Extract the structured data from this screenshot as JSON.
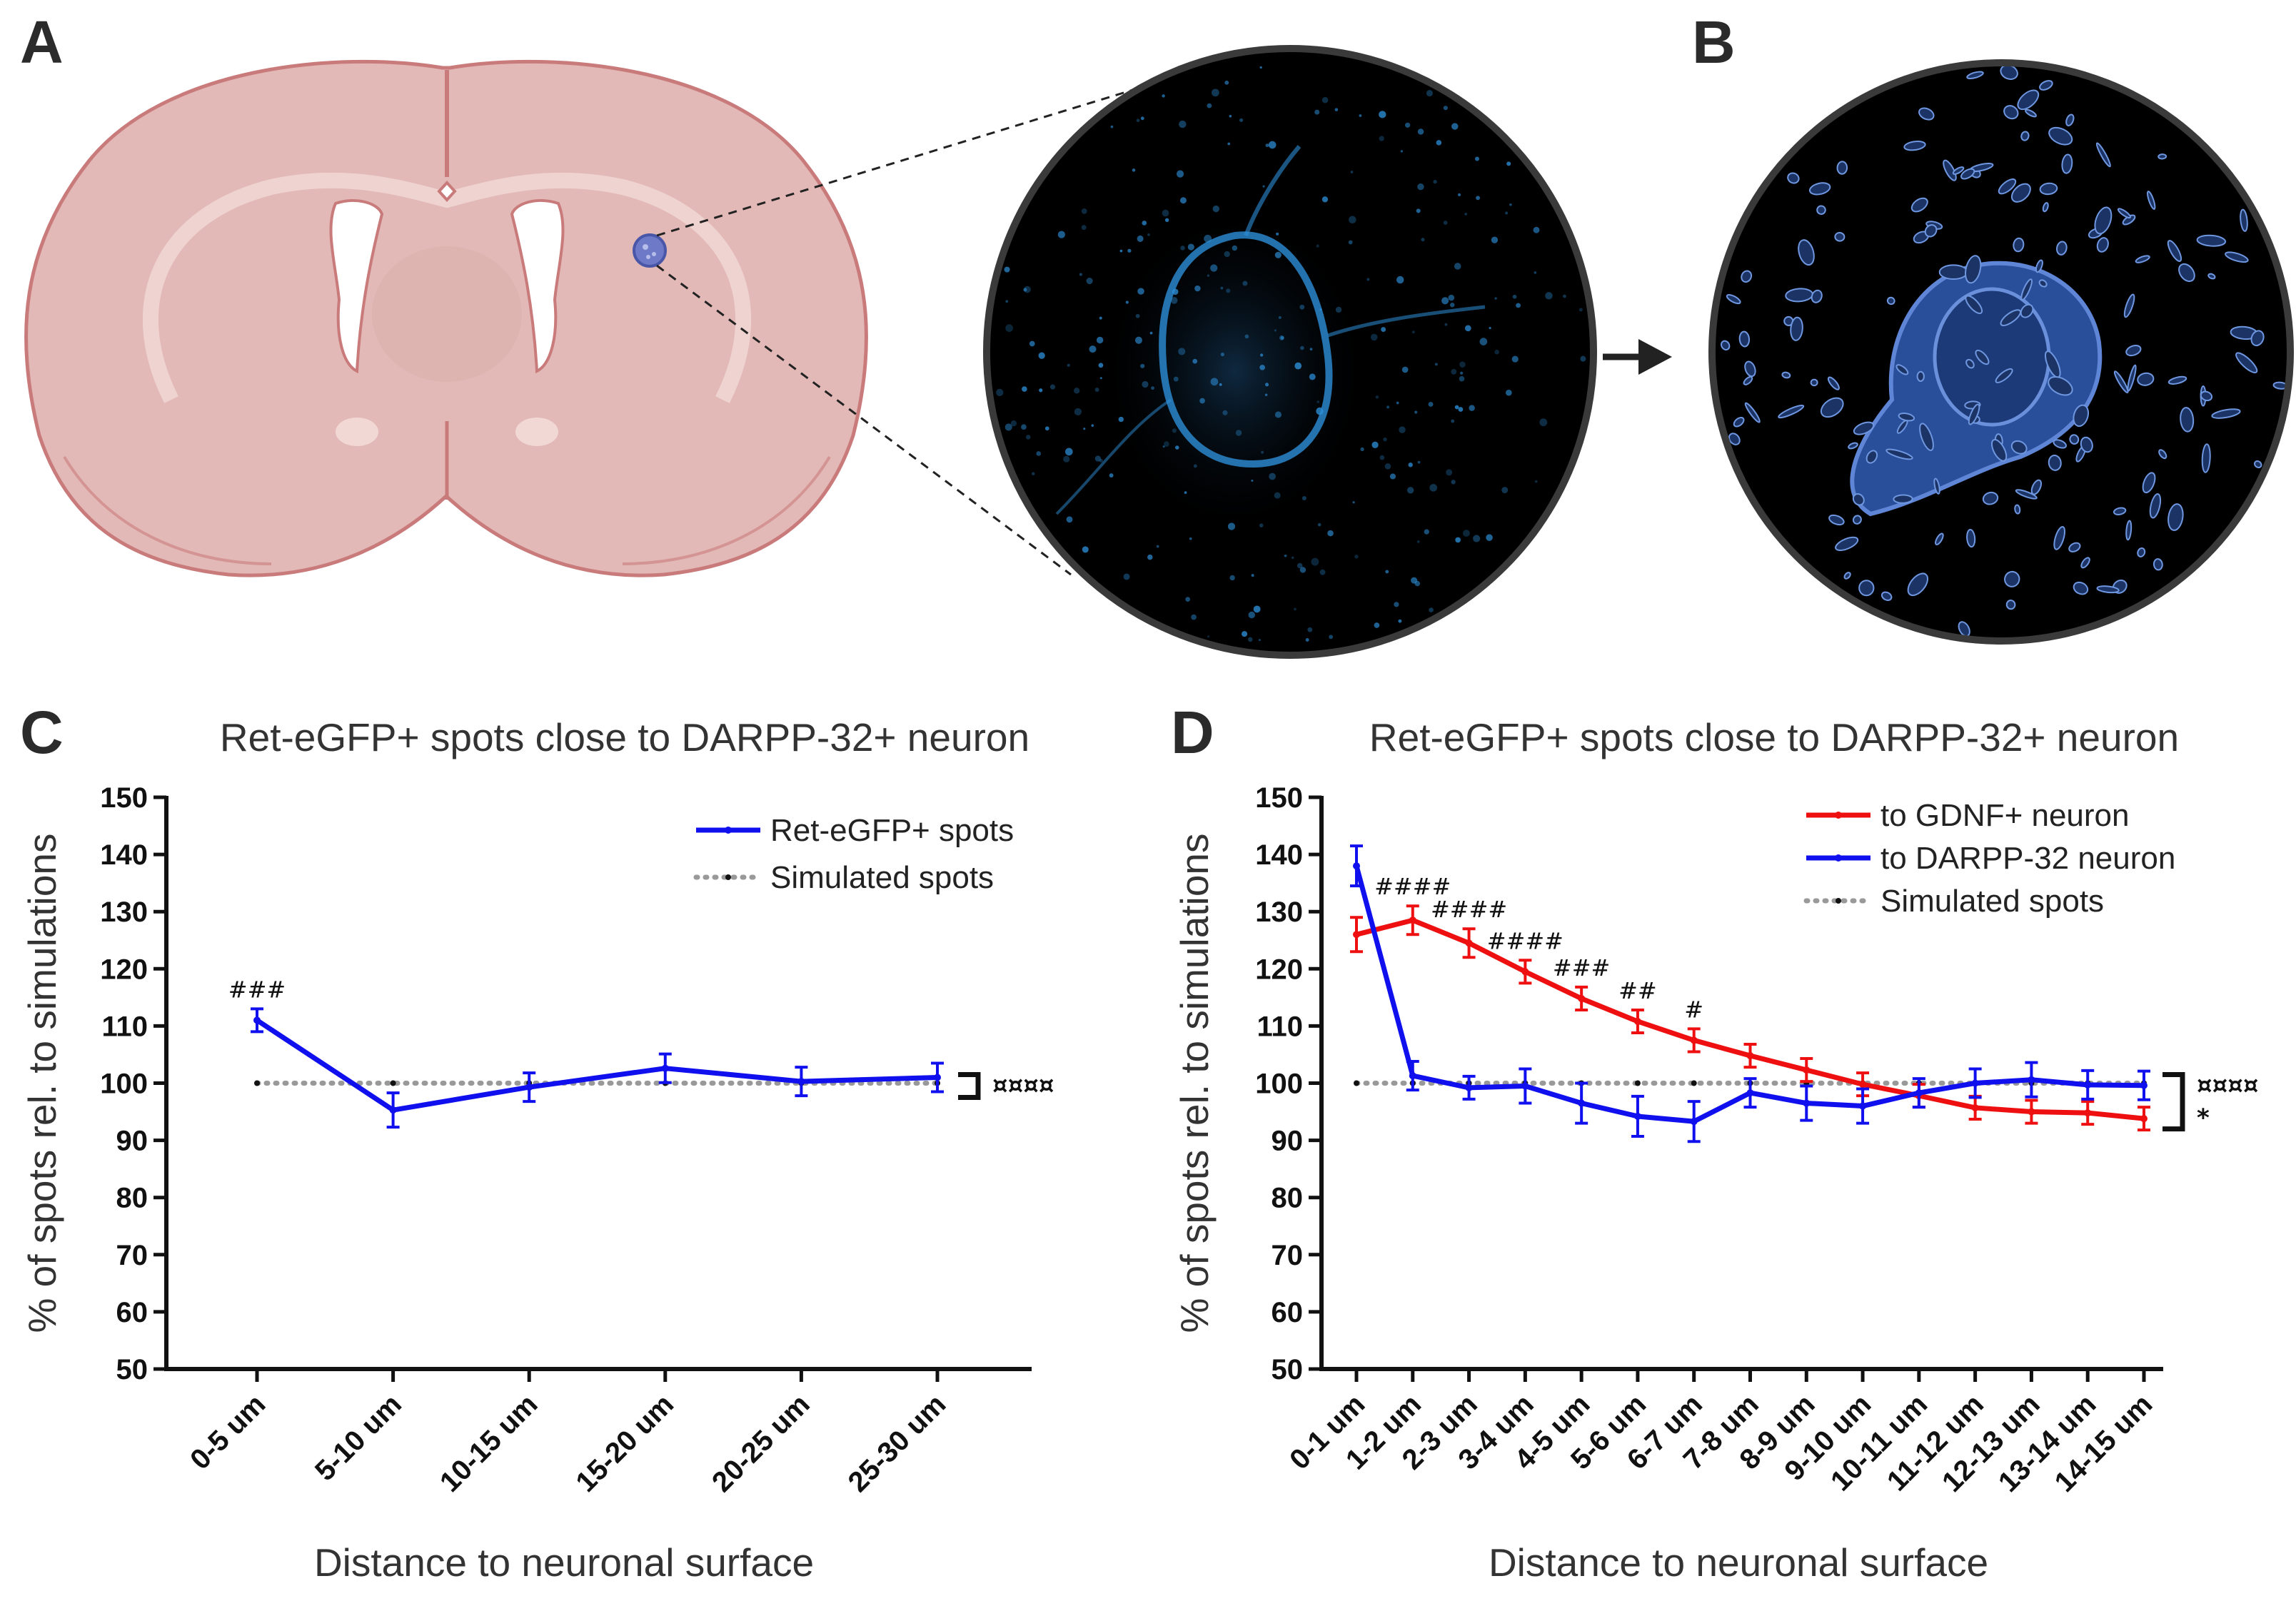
{
  "panels": {
    "a": "A",
    "b": "B",
    "c": "C",
    "d": "D"
  },
  "colors": {
    "brain_fill": "#e2b9b7",
    "brain_stroke": "#c97b7b",
    "brain_inner": "#efd3d0",
    "micrograph_bg": "#000000",
    "signal_blue": "#2d8fd8",
    "surface_blue": "#3f73c9",
    "series_blue": "#1010ee",
    "series_red": "#ee1010",
    "simulated": "#999999"
  },
  "chart_data": [
    {
      "id": "C",
      "type": "line",
      "title": "Ret-eGFP+ spots close to DARPP-32+ neuron",
      "xlabel": "Distance to neuronal surface",
      "ylabel": "% of spots rel. to simulations",
      "ylim": [
        50,
        150
      ],
      "yticks": [
        50,
        60,
        70,
        80,
        90,
        100,
        110,
        120,
        130,
        140,
        150
      ],
      "categories": [
        "0-5 um",
        "5-10 um",
        "10-15 um",
        "15-20 um",
        "20-25 um",
        "25-30 um"
      ],
      "series": [
        {
          "name": "Ret-eGFP+ spots",
          "color": "#1010ee",
          "values": [
            111,
            95.3,
            99.3,
            102.6,
            100.3,
            101
          ],
          "errors": [
            2,
            3,
            2.5,
            2.5,
            2.5,
            2.5
          ]
        },
        {
          "name": "Simulated spots",
          "color": "#999999",
          "style": "dotted",
          "values": [
            100,
            100,
            100,
            100,
            100,
            100
          ]
        }
      ],
      "annotations": [
        {
          "index": 0,
          "text": "###"
        }
      ],
      "significance": "¤¤¤¤",
      "legend_position": "top-right"
    },
    {
      "id": "D",
      "type": "line",
      "title": "Ret-eGFP+ spots close to DARPP-32+ neuron",
      "xlabel": "Distance to neuronal surface",
      "ylabel": "% of spots rel. to simulations",
      "ylim": [
        50,
        150
      ],
      "yticks": [
        50,
        60,
        70,
        80,
        90,
        100,
        110,
        120,
        130,
        140,
        150
      ],
      "categories": [
        "0-1 um",
        "1-2 um",
        "2-3 um",
        "3-4 um",
        "4-5 um",
        "5-6 um",
        "6-7 um",
        "7-8 um",
        "8-9 um",
        "9-10 um",
        "10-11 um",
        "11-12 um",
        "12-13 um",
        "13-14 um",
        "14-15 um"
      ],
      "series": [
        {
          "name": "to GDNF+ neuron",
          "color": "#ee1010",
          "values": [
            126,
            128.5,
            124.5,
            119.5,
            114.8,
            110.8,
            107.5,
            104.8,
            102.3,
            99.8,
            97.8,
            95.7,
            95,
            94.8,
            93.8
          ],
          "errors": [
            3,
            2.5,
            2.5,
            2,
            2,
            2,
            2,
            2,
            2,
            2,
            2,
            2,
            2,
            2,
            2
          ]
        },
        {
          "name": "to DARPP-32 neuron",
          "color": "#1010ee",
          "values": [
            138,
            101.3,
            99.2,
            99.5,
            96.5,
            94.2,
            93.3,
            98.3,
            96.5,
            96,
            98.3,
            100,
            100.6,
            99.7,
            99.6
          ],
          "errors": [
            3.5,
            2.5,
            2,
            3,
            3.5,
            3.5,
            3.5,
            2.5,
            3,
            3,
            2.5,
            2.5,
            3,
            2.5,
            2.5
          ]
        },
        {
          "name": "Simulated spots",
          "color": "#999999",
          "style": "dotted",
          "values": [
            100,
            100,
            100,
            100,
            100,
            100,
            100,
            100,
            100,
            100,
            100,
            100,
            100,
            100,
            100
          ]
        }
      ],
      "annotations": [
        {
          "index": 1,
          "text": "####"
        },
        {
          "index": 2,
          "text": "####"
        },
        {
          "index": 3,
          "text": "####"
        },
        {
          "index": 4,
          "text": "###"
        },
        {
          "index": 5,
          "text": "##"
        },
        {
          "index": 6,
          "text": "#"
        }
      ],
      "significance": "¤¤¤¤",
      "significance_2": "*",
      "legend_position": "top-right"
    }
  ]
}
